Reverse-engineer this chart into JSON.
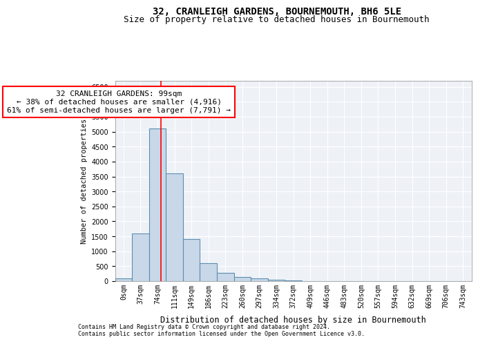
{
  "title1": "32, CRANLEIGH GARDENS, BOURNEMOUTH, BH6 5LE",
  "title2": "Size of property relative to detached houses in Bournemouth",
  "xlabel": "Distribution of detached houses by size in Bournemouth",
  "ylabel": "Number of detached properties",
  "bin_labels": [
    "0sqm",
    "37sqm",
    "74sqm",
    "111sqm",
    "149sqm",
    "186sqm",
    "223sqm",
    "260sqm",
    "297sqm",
    "334sqm",
    "372sqm",
    "409sqm",
    "446sqm",
    "483sqm",
    "520sqm",
    "557sqm",
    "594sqm",
    "632sqm",
    "669sqm",
    "706sqm",
    "743sqm"
  ],
  "bar_values": [
    100,
    1600,
    5100,
    3600,
    1400,
    600,
    270,
    150,
    100,
    50,
    20,
    10,
    5,
    5,
    5,
    3,
    2,
    1,
    1,
    1,
    0
  ],
  "bar_color": "#c8d8e8",
  "bar_edgecolor": "#5b8db0",
  "bar_linewidth": 0.8,
  "red_line_x": 2.7,
  "annotation_text1": "32 CRANLEIGH GARDENS: 99sqm",
  "annotation_text2": "← 38% of detached houses are smaller (4,916)",
  "annotation_text3": "61% of semi-detached houses are larger (7,791) →",
  "ylim": [
    0,
    6700
  ],
  "yticks": [
    0,
    500,
    1000,
    1500,
    2000,
    2500,
    3000,
    3500,
    4000,
    4500,
    5000,
    5500,
    6000,
    6500
  ],
  "footer1": "Contains HM Land Registry data © Crown copyright and database right 2024.",
  "footer2": "Contains public sector information licensed under the Open Government Licence v3.0.",
  "background_color": "#eef2f7",
  "grid_color": "#ffffff",
  "title1_fontsize": 10,
  "title2_fontsize": 9,
  "xlabel_fontsize": 8.5,
  "ylabel_fontsize": 7.5,
  "annotation_fontsize": 8,
  "tick_fontsize": 7,
  "footer_fontsize": 6
}
